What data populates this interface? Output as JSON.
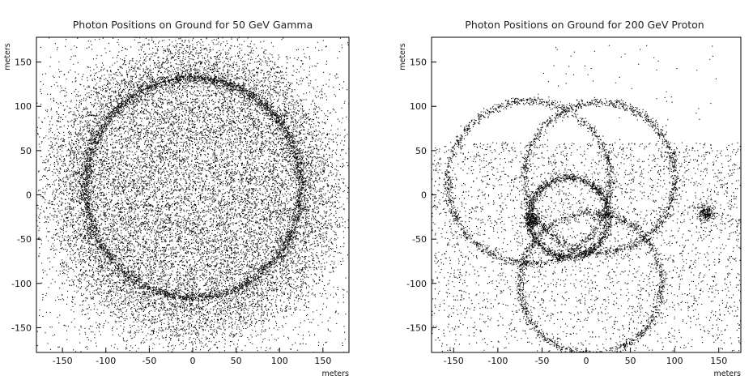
{
  "chart_data": [
    {
      "type": "scatter",
      "title": "Photon Positions on Ground for 50 GeV Gamma",
      "xlabel": "meters",
      "ylabel": "meters",
      "xlim": [
        -180,
        180
      ],
      "ylim": [
        -178,
        178
      ],
      "xticks": [
        "-150",
        "-100",
        "-50",
        "0",
        "50",
        "100",
        "150"
      ],
      "xtick_values": [
        -150,
        -100,
        -50,
        0,
        50,
        100,
        150
      ],
      "yticks": [
        "-150",
        "-100",
        "-50",
        "0",
        "50",
        "100",
        "150"
      ],
      "ytick_values": [
        -150,
        -100,
        -50,
        0,
        50,
        100,
        150
      ],
      "grid": false,
      "marker_color": "#000000",
      "structures": [
        {
          "shape": "filled-disk",
          "center": [
            0,
            8
          ],
          "radius": 127,
          "density": "very high"
        },
        {
          "shape": "ring",
          "center": [
            0,
            8
          ],
          "radius": 124,
          "density": "highest"
        },
        {
          "shape": "halo",
          "center": [
            0,
            5
          ],
          "radius_range": [
            127,
            175
          ],
          "density": "decreasing outward"
        }
      ]
    },
    {
      "type": "scatter",
      "title": "Photon Positions on Ground for 200 GeV Proton",
      "xlabel": "meters",
      "ylabel": "meters",
      "xlim": [
        -175,
        175
      ],
      "ylim": [
        -178,
        178
      ],
      "xticks": [
        "-150",
        "-100",
        "-50",
        "0",
        "50",
        "100",
        "150"
      ],
      "xtick_values": [
        -150,
        -100,
        -50,
        0,
        50,
        100,
        150
      ],
      "yticks": [
        "-150",
        "-100",
        "-50",
        "0",
        "50",
        "100",
        "150"
      ],
      "ytick_values": [
        -150,
        -100,
        -50,
        0,
        50,
        100,
        150
      ],
      "grid": false,
      "marker_color": "#000000",
      "structures": [
        {
          "shape": "ring",
          "center": [
            -65,
            15
          ],
          "radius": 92
        },
        {
          "shape": "ring",
          "center": [
            15,
            20
          ],
          "radius": 85
        },
        {
          "shape": "ring",
          "center": [
            5,
            -100
          ],
          "radius": 80
        },
        {
          "shape": "ring",
          "center": [
            -20,
            -25
          ],
          "radius": 45
        },
        {
          "shape": "cluster",
          "center": [
            -62,
            -28
          ],
          "size": 10
        },
        {
          "shape": "cluster",
          "center": [
            135,
            -20
          ],
          "size": 10
        },
        {
          "shape": "background",
          "x_range": [
            -175,
            175
          ],
          "y_range": [
            -178,
            60
          ]
        }
      ]
    }
  ]
}
